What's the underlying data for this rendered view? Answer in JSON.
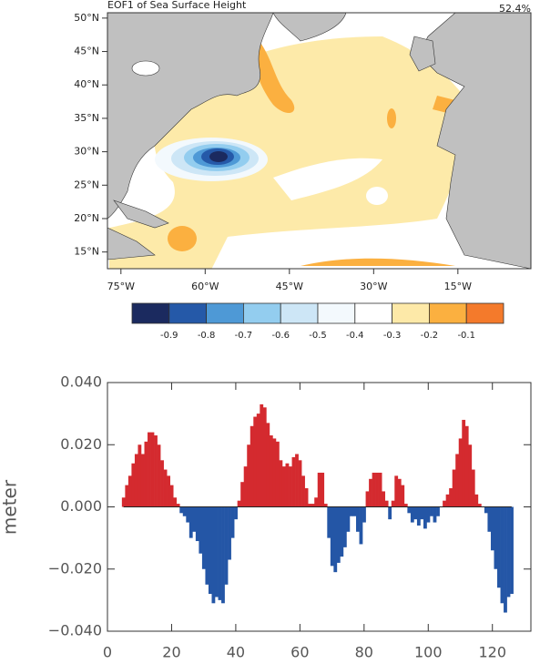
{
  "chart_data": [
    {
      "type": "map",
      "title": "EOF1 of Sea Surface Height",
      "annotation": "52.4%",
      "xlim": [
        -77.4,
        -2
      ],
      "ylim": [
        12.5,
        50.8
      ],
      "xticks": [
        {
          "value": -75,
          "label": "75°W"
        },
        {
          "value": -60,
          "label": "60°W"
        },
        {
          "value": -45,
          "label": "45°W"
        },
        {
          "value": -30,
          "label": "30°W"
        },
        {
          "value": -15,
          "label": "15°W"
        }
      ],
      "yticks": [
        {
          "value": 15,
          "label": "15°N"
        },
        {
          "value": 20,
          "label": "20°N"
        },
        {
          "value": 25,
          "label": "25°N"
        },
        {
          "value": 30,
          "label": "30°N"
        },
        {
          "value": 35,
          "label": "35°N"
        },
        {
          "value": 40,
          "label": "40°N"
        },
        {
          "value": 45,
          "label": "45°N"
        },
        {
          "value": 50,
          "label": "50°N"
        }
      ],
      "colorbar": {
        "colors": [
          "#1b2a5f",
          "#2559a8",
          "#4e99d6",
          "#93cdef",
          "#cde6f6",
          "#f3f9fd",
          "#ffffff",
          "#fde9a8",
          "#fbb040",
          "#f47a2b"
        ],
        "ticks": [
          -0.9,
          -0.8,
          -0.7,
          -0.6,
          -0.5,
          -0.4,
          -0.3,
          -0.2,
          -0.1
        ]
      }
    },
    {
      "type": "area",
      "y_label": "meter",
      "positive_color": "#d42a2f",
      "negative_color": "#2456a6",
      "xlim": [
        0,
        132
      ],
      "ylim": [
        -0.04,
        0.04
      ],
      "xticks": [
        0,
        20,
        40,
        60,
        80,
        100,
        120
      ],
      "yticks": [
        {
          "value": -0.04,
          "label": "−0.040"
        },
        {
          "value": -0.02,
          "label": "−0.020"
        },
        {
          "value": 0,
          "label": "0.000"
        },
        {
          "value": 0.02,
          "label": "0.020"
        },
        {
          "value": 0.04,
          "label": "0.040"
        }
      ],
      "x": [
        5,
        6,
        7,
        8,
        9,
        10,
        11,
        12,
        13,
        14,
        15,
        16,
        17,
        18,
        19,
        20,
        21,
        22,
        23,
        24,
        25,
        26,
        27,
        28,
        29,
        30,
        31,
        32,
        33,
        34,
        35,
        36,
        37,
        38,
        39,
        40,
        41,
        42,
        43,
        44,
        45,
        46,
        47,
        48,
        49,
        50,
        51,
        52,
        53,
        54,
        55,
        56,
        57,
        58,
        59,
        60,
        61,
        62,
        63,
        64,
        65,
        66,
        67,
        68,
        69,
        70,
        71,
        72,
        73,
        74,
        75,
        76,
        77,
        78,
        79,
        80,
        81,
        82,
        83,
        84,
        85,
        86,
        87,
        88,
        89,
        90,
        91,
        92,
        93,
        94,
        95,
        96,
        97,
        98,
        99,
        100,
        101,
        102,
        103,
        104,
        105,
        106,
        107,
        108,
        109,
        110,
        111,
        112,
        113,
        114,
        115,
        116,
        117,
        118,
        119,
        120,
        121,
        122,
        123,
        124,
        125,
        126
      ],
      "values": [
        0.003,
        0.007,
        0.01,
        0.014,
        0.017,
        0.02,
        0.017,
        0.021,
        0.024,
        0.024,
        0.023,
        0.02,
        0.015,
        0.012,
        0.01,
        0.007,
        0.003,
        0.001,
        -0.002,
        -0.003,
        -0.005,
        -0.01,
        -0.008,
        -0.011,
        -0.015,
        -0.02,
        -0.025,
        -0.028,
        -0.031,
        -0.029,
        -0.03,
        -0.031,
        -0.025,
        -0.017,
        -0.01,
        -0.004,
        0.002,
        0.008,
        0.013,
        0.02,
        0.026,
        0.029,
        0.03,
        0.033,
        0.032,
        0.027,
        0.023,
        0.022,
        0.021,
        0.015,
        0.013,
        0.014,
        0.013,
        0.016,
        0.017,
        0.015,
        0.01,
        0.006,
        0.001,
        0.001,
        0.003,
        0.011,
        0.011,
        0.001,
        -0.01,
        -0.019,
        -0.021,
        -0.018,
        -0.016,
        -0.013,
        -0.008,
        -0.003,
        -0.003,
        -0.008,
        -0.012,
        -0.005,
        0.005,
        0.009,
        0.011,
        0.011,
        0.011,
        0.005,
        0.002,
        -0.004,
        0.002,
        0.01,
        0.009,
        0.007,
        0.001,
        -0.002,
        -0.005,
        -0.004,
        -0.006,
        -0.004,
        -0.007,
        -0.005,
        -0.003,
        -0.005,
        -0.003,
        0.0,
        0.002,
        0.004,
        0.006,
        0.012,
        0.017,
        0.022,
        0.028,
        0.026,
        0.02,
        0.012,
        0.004,
        0.001,
        0.0,
        -0.002,
        -0.008,
        -0.014,
        -0.02,
        -0.026,
        -0.031,
        -0.034,
        -0.029,
        -0.028
      ]
    }
  ]
}
